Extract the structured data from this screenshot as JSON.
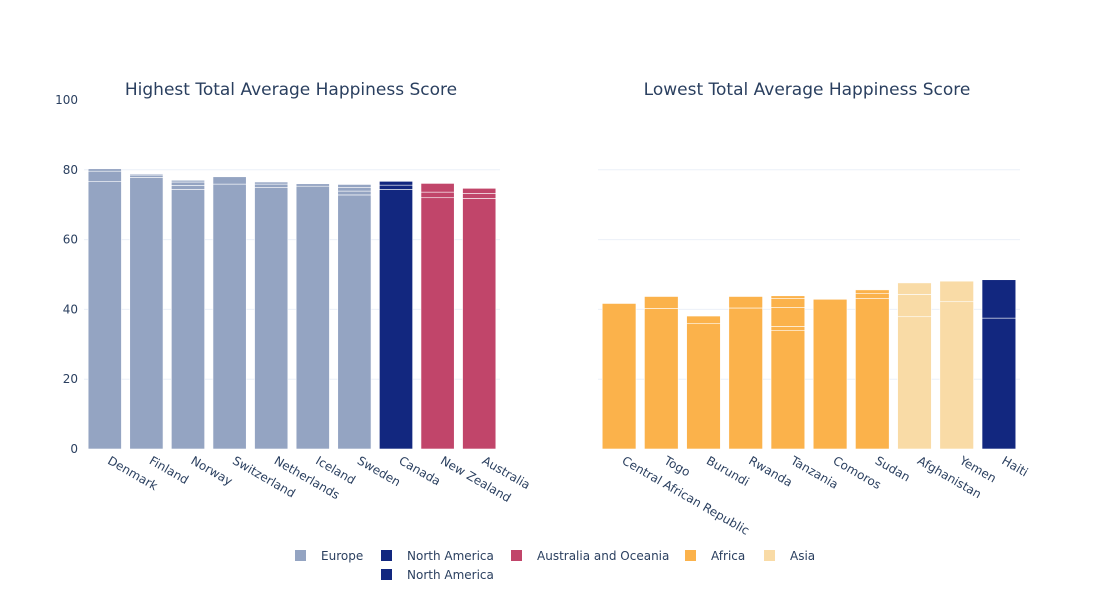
{
  "chart_data": [
    {
      "type": "bar",
      "barmode": "stack",
      "title": "Highest Total Average Happiness Score",
      "ylim": [
        0,
        100
      ],
      "yticks": [
        0,
        20,
        40,
        60,
        80,
        100
      ],
      "grid": true,
      "categories": [
        "Denmark",
        "Finland",
        "Norway",
        "Switzerland",
        "Netherlands",
        "Iceland",
        "Sweden",
        "Canada",
        "New Zealand",
        "Australia"
      ],
      "bars": [
        {
          "category": "Denmark",
          "region": "Europe",
          "segments": [
            76.6,
            3.0,
            0.7
          ]
        },
        {
          "category": "Finland",
          "region": "Europe",
          "segments": [
            77.8,
            0.7,
            0.3
          ]
        },
        {
          "category": "Norway",
          "region": "Europe",
          "segments": [
            74.4,
            1.1,
            1.0,
            0.5
          ]
        },
        {
          "category": "Switzerland",
          "region": "Europe",
          "segments": [
            75.9,
            2.1
          ]
        },
        {
          "category": "Netherlands",
          "region": "Europe",
          "segments": [
            74.9,
            1.0,
            0.6
          ]
        },
        {
          "category": "Iceland",
          "region": "Europe",
          "segments": [
            75.3,
            0.7
          ]
        },
        {
          "category": "Sweden",
          "region": "Europe",
          "segments": [
            72.8,
            1.1,
            1.0,
            0.9
          ]
        },
        {
          "category": "Canada",
          "region": "North America",
          "segments": [
            74.4,
            1.2,
            1.1
          ]
        },
        {
          "category": "New Zealand",
          "region": "Australia and Oceania",
          "segments": [
            72.0,
            1.6,
            2.5
          ]
        },
        {
          "category": "Australia",
          "region": "Australia and Oceania",
          "segments": [
            71.8,
            1.4,
            1.5
          ]
        }
      ]
    },
    {
      "type": "bar",
      "barmode": "stack",
      "title": "Lowest Total Average Happiness Score",
      "ylim": [
        0,
        100
      ],
      "grid": true,
      "categories": [
        "Central African Republic",
        "Togo",
        "Burundi",
        "Rwanda",
        "Tanzania",
        "Comoros",
        "Sudan",
        "Afghanistan",
        "Yemen",
        "Haiti"
      ],
      "bars": [
        {
          "category": "Central African Republic",
          "region": "Africa",
          "segments": [
            41.7
          ]
        },
        {
          "category": "Togo",
          "region": "Africa",
          "segments": [
            40.3,
            3.4
          ]
        },
        {
          "category": "Burundi",
          "region": "Africa",
          "segments": [
            35.9,
            2.2
          ]
        },
        {
          "category": "Rwanda",
          "region": "Africa",
          "segments": [
            40.4,
            3.3
          ]
        },
        {
          "category": "Tanzania",
          "region": "Africa",
          "segments": [
            33.9,
            1.2,
            5.5,
            2.5,
            0.8
          ]
        },
        {
          "category": "Comoros",
          "region": "Africa",
          "segments": [
            42.9
          ]
        },
        {
          "category": "Sudan",
          "region": "Africa",
          "segments": [
            43.1,
            1.4,
            1.1
          ]
        },
        {
          "category": "Afghanistan",
          "region": "Asia",
          "segments": [
            37.9,
            6.4,
            3.3
          ]
        },
        {
          "category": "Yemen",
          "region": "Asia",
          "segments": [
            42.2,
            5.9
          ]
        },
        {
          "category": "Haiti",
          "region": "North America",
          "segments": [
            37.5,
            11.0
          ]
        }
      ]
    }
  ],
  "legend": {
    "placement": "bottom",
    "items": [
      {
        "label": "Europe",
        "color": "#94a4c2"
      },
      {
        "label": "North America",
        "color": "#12277f"
      },
      {
        "label": "Australia and Oceania",
        "color": "#c1456a"
      },
      {
        "label": "Africa",
        "color": "#fbb24b"
      },
      {
        "label": "Asia",
        "color": "#f9dba6"
      },
      {
        "label": "North America",
        "color": "#12277f"
      }
    ]
  },
  "colors": {
    "Europe": "#94a4c2",
    "North America": "#12277f",
    "Australia and Oceania": "#c1456a",
    "Africa": "#fbb24b",
    "Asia": "#f9dba6"
  }
}
